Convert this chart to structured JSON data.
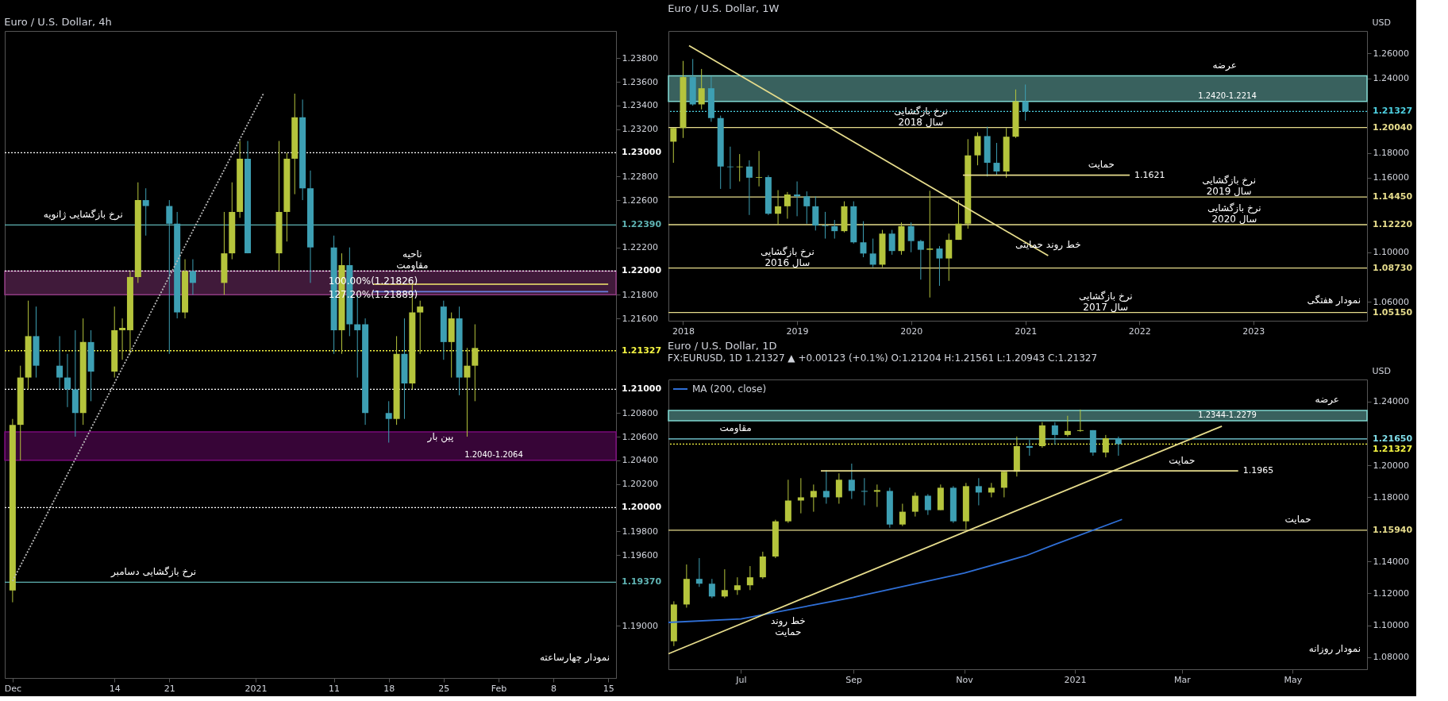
{
  "chart_data": [
    {
      "type": "candlestick",
      "title": "Euro / U.S. Dollar, 4h",
      "colors": [
        "#b5c43c",
        "#b5c43c",
        "#b5c43c",
        "#3d9fb3",
        "#3d9fb3",
        "#3d9fb3",
        "#3d9fb3",
        "#b5c43c",
        "#3d9fb3",
        "#b5c43c",
        "#b5c43c",
        "#b5c43c",
        "#b5c43c",
        "#3d9fb3",
        "#3d9fb3",
        "#3d9fb3",
        "#b5c43c",
        "#3d9fb3",
        "#b5c43c",
        "#b5c43c",
        "#b5c43c",
        "#3d9fb3",
        "#b5c43c",
        "#b5c43c",
        "#b5c43c",
        "#3d9fb3",
        "#3d9fb3",
        "#3d9fb3",
        "#b5c43c",
        "#3d9fb3",
        "#3d9fb3",
        "#3d9fb3",
        "#3d9fb3",
        "#b5c43c",
        "#3d9fb3",
        "#b5c43c",
        "#b5c43c",
        "#3d9fb3",
        "#b5c43c",
        "#3d9fb3",
        "#b5c43c",
        "#b5c43c"
      ],
      "grid": false,
      "x": [
        "2020-12-01",
        "2020-12-02",
        "2020-12-03",
        "2020-12-04",
        "2020-12-07",
        "2020-12-08",
        "2020-12-09",
        "2020-12-10",
        "2020-12-11",
        "2020-12-14",
        "2020-12-15",
        "2020-12-16",
        "2020-12-17",
        "2020-12-18",
        "2020-12-21",
        "2020-12-22",
        "2020-12-23",
        "2020-12-24",
        "2020-12-28",
        "2020-12-29",
        "2020-12-30",
        "2020-12-31",
        "2021-01-04",
        "2021-01-05",
        "2021-01-06",
        "2021-01-07",
        "2021-01-08",
        "2021-01-11",
        "2021-01-12",
        "2021-01-13",
        "2021-01-14",
        "2021-01-15",
        "2021-01-18",
        "2021-01-19",
        "2021-01-20",
        "2021-01-21",
        "2021-01-22",
        "2021-01-25",
        "2021-01-26",
        "2021-01-27",
        "2021-01-28",
        "2021-01-29"
      ],
      "ohlc": [
        [
          1.193,
          1.2075,
          1.192,
          1.207
        ],
        [
          1.207,
          1.212,
          1.204,
          1.211
        ],
        [
          1.211,
          1.2175,
          1.21,
          1.2145
        ],
        [
          1.2145,
          1.217,
          1.211,
          1.212
        ],
        [
          1.212,
          1.2145,
          1.21,
          1.211
        ],
        [
          1.211,
          1.213,
          1.2085,
          1.21
        ],
        [
          1.21,
          1.215,
          1.206,
          1.208
        ],
        [
          1.208,
          1.216,
          1.207,
          1.214
        ],
        [
          1.214,
          1.215,
          1.209,
          1.2115
        ],
        [
          1.2115,
          1.217,
          1.211,
          1.215
        ],
        [
          1.215,
          1.216,
          1.2125,
          1.2152
        ],
        [
          1.215,
          1.22,
          1.213,
          1.2195
        ],
        [
          1.2195,
          1.2275,
          1.219,
          1.226
        ],
        [
          1.226,
          1.227,
          1.223,
          1.2255
        ],
        [
          1.2255,
          1.226,
          1.213,
          1.224
        ],
        [
          1.224,
          1.225,
          1.216,
          1.2165
        ],
        [
          1.2165,
          1.221,
          1.216,
          1.22
        ],
        [
          1.22,
          1.221,
          1.218,
          1.219
        ],
        [
          1.219,
          1.225,
          1.218,
          1.2215
        ],
        [
          1.2215,
          1.2275,
          1.221,
          1.225
        ],
        [
          1.225,
          1.231,
          1.2245,
          1.2295
        ],
        [
          1.2295,
          1.231,
          1.2215,
          1.2215
        ],
        [
          1.2215,
          1.231,
          1.22,
          1.225
        ],
        [
          1.225,
          1.23,
          1.2225,
          1.2295
        ],
        [
          1.2295,
          1.235,
          1.2265,
          1.233
        ],
        [
          1.233,
          1.2345,
          1.226,
          1.227
        ],
        [
          1.227,
          1.2285,
          1.219,
          1.222
        ],
        [
          1.222,
          1.223,
          1.213,
          1.215
        ],
        [
          1.215,
          1.2215,
          1.213,
          1.2205
        ],
        [
          1.2205,
          1.222,
          1.2145,
          1.2155
        ],
        [
          1.2155,
          1.218,
          1.211,
          1.215
        ],
        [
          1.2155,
          1.216,
          1.207,
          1.208
        ],
        [
          1.208,
          1.209,
          1.2055,
          1.2075
        ],
        [
          1.2075,
          1.2145,
          1.207,
          1.213
        ],
        [
          1.213,
          1.216,
          1.2075,
          1.2105
        ],
        [
          1.2105,
          1.219,
          1.21,
          1.2165
        ],
        [
          1.2165,
          1.2175,
          1.213,
          1.217
        ],
        [
          1.217,
          1.2175,
          1.2125,
          1.214
        ],
        [
          1.214,
          1.2165,
          1.211,
          1.216
        ],
        [
          1.216,
          1.217,
          1.2095,
          1.211
        ],
        [
          1.211,
          1.2135,
          1.206,
          1.212
        ],
        [
          1.212,
          1.2155,
          1.209,
          1.2135
        ]
      ],
      "xlim": [
        "2020-11-30",
        "2021-02-16"
      ],
      "xticks": [
        {
          "value": "2020-12-01",
          "label": "Dec"
        },
        {
          "value": "2020-12-14",
          "label": "14"
        },
        {
          "value": "2020-12-21",
          "label": "21"
        },
        {
          "value": "2021-01-01",
          "label": "2021"
        },
        {
          "value": "2021-01-11",
          "label": "11"
        },
        {
          "value": "2021-01-18",
          "label": "18"
        },
        {
          "value": "2021-01-25",
          "label": "25"
        },
        {
          "value": "2021-02-01",
          "label": "Feb"
        },
        {
          "value": "2021-02-08",
          "label": "8"
        },
        {
          "value": "2021-02-15",
          "label": "15"
        }
      ],
      "ylim": [
        1.1856,
        1.2403
      ],
      "yticks": [
        {
          "value": 1.238,
          "label": "1.23800"
        },
        {
          "value": 1.236,
          "label": "1.23600"
        },
        {
          "value": 1.234,
          "label": "1.23400"
        },
        {
          "value": 1.232,
          "label": "1.23200"
        },
        {
          "value": 1.228,
          "label": "1.22800"
        },
        {
          "value": 1.226,
          "label": "1.22600"
        },
        {
          "value": 1.222,
          "label": "1.22200"
        },
        {
          "value": 1.218,
          "label": "1.21800"
        },
        {
          "value": 1.216,
          "label": "1.21600"
        },
        {
          "value": 1.208,
          "label": "1.20800"
        },
        {
          "value": 1.206,
          "label": "1.20600"
        },
        {
          "value": 1.204,
          "label": "1.20400"
        },
        {
          "value": 1.202,
          "label": "1.20200"
        },
        {
          "value": 1.198,
          "label": "1.19800"
        },
        {
          "value": 1.196,
          "label": "1.19600"
        },
        {
          "value": 1.19,
          "label": "1.19000"
        }
      ],
      "ref_lines": [
        {
          "axis": "y",
          "value": 1.23,
          "label": "1.23000",
          "color": "#ffffff",
          "line_style": "dotted"
        },
        {
          "axis": "y",
          "value": 1.2239,
          "label": "1.22390",
          "color": "#5fb3b3",
          "line_style": "solid"
        },
        {
          "axis": "y",
          "value": 1.22,
          "label": "1.22000",
          "color": "#ffffff",
          "line_style": "dotted"
        },
        {
          "axis": "y",
          "value": 1.21327,
          "label": "1.21327",
          "color": "#f5f542",
          "line_style": "dotted"
        },
        {
          "axis": "y",
          "value": 1.21,
          "label": "1.21000",
          "color": "#ffffff",
          "line_style": "dotted"
        },
        {
          "axis": "y",
          "value": 1.2,
          "label": "1.20000",
          "color": "#ffffff",
          "line_style": "dotted"
        },
        {
          "axis": "y",
          "value": 1.1937,
          "label": "1.19370",
          "color": "#5fb3b3",
          "line_style": "solid"
        }
      ],
      "bands": [
        {
          "axis": "y",
          "from": 1.204,
          "to": 1.2064,
          "label": "1.2040-1.2064",
          "color": "#7a0a7a"
        },
        {
          "axis": "y",
          "from": 1.218,
          "to": 1.22,
          "color": "#8e3a80"
        }
      ],
      "series": [
        {
          "type": "line",
          "color": "#bbbbbb",
          "line_style": "dotted",
          "x": [
            "2020-12-01",
            "2021-01-02"
          ],
          "values": [
            1.1938,
            1.235
          ]
        },
        {
          "type": "line",
          "color": "#c8b560",
          "line_style": "solid",
          "x": [
            "2021-01-16",
            "2021-02-15"
          ],
          "values": [
            1.21889,
            1.21889
          ]
        },
        {
          "type": "line",
          "color": "#6a7fe0",
          "line_style": "solid",
          "x": [
            "2021-01-16",
            "2021-02-15"
          ],
          "values": [
            1.21826,
            1.21826
          ]
        }
      ],
      "annotations": [
        "نمودار چهارساعته",
        {
          "text": "نرخ بازگشایی ژانویه",
          "x": "2020-12-10",
          "y": 1.2239
        },
        {
          "text": "ناحیه\nمقاومت",
          "x": "2021-01-21",
          "y": 1.22
        },
        {
          "text": "127.20%(1.21889)",
          "x": "2021-01-16",
          "y": 1.21889
        },
        {
          "text": "100.00%(1.21826)",
          "x": "2021-01-16",
          "y": 1.21826
        },
        {
          "text": "پین بار",
          "x": "2021-01-28",
          "y": 1.206
        },
        {
          "text": "نرخ بازگشایی دسامبر",
          "x": "2020-12-19",
          "y": 1.1937
        }
      ]
    },
    {
      "type": "candlestick",
      "title": "Euro / U.S. Dollar, 1W",
      "ylabel": "USD",
      "colors": [
        "#b5c43c",
        "#b5c43c",
        "#3d9fb3",
        "#b5c43c",
        "#3d9fb3",
        "#3d9fb3",
        "#3d9fb3",
        "#b5c43c",
        "#3d9fb3",
        "#b5c43c",
        "#3d9fb3",
        "#b5c43c",
        "#b5c43c",
        "#3d9fb3",
        "#3d9fb3",
        "#3d9fb3",
        "#3d9fb3",
        "#3d9fb3",
        "#b5c43c",
        "#3d9fb3",
        "#3d9fb3",
        "#3d9fb3",
        "#b5c43c",
        "#3d9fb3",
        "#b5c43c",
        "#3d9fb3",
        "#3d9fb3",
        "#b5c43c",
        "#3d9fb3",
        "#b5c43c",
        "#b5c43c",
        "#b5c43c",
        "#b5c43c",
        "#3d9fb3",
        "#3d9fb3",
        "#b5c43c",
        "#b5c43c",
        "#3d9fb3"
      ],
      "grid": false,
      "x": [
        "2017-12",
        "2018-01",
        "2018-02",
        "2018-03",
        "2018-04",
        "2018-05",
        "2018-06",
        "2018-07",
        "2018-08",
        "2018-09",
        "2018-10",
        "2018-11",
        "2018-12",
        "2019-01",
        "2019-02",
        "2019-03",
        "2019-04",
        "2019-05",
        "2019-06",
        "2019-07",
        "2019-08",
        "2019-09",
        "2019-10",
        "2019-11",
        "2019-12",
        "2020-01",
        "2020-02",
        "2020-03",
        "2020-04",
        "2020-05",
        "2020-06",
        "2020-07",
        "2020-08",
        "2020-09",
        "2020-10",
        "2020-11",
        "2020-12",
        "2021-01"
      ],
      "ohlc": [
        [
          1.189,
          1.2,
          1.172,
          1.2
        ],
        [
          1.2,
          1.254,
          1.192,
          1.241
        ],
        [
          1.241,
          1.2555,
          1.218,
          1.219
        ],
        [
          1.219,
          1.2475,
          1.215,
          1.232
        ],
        [
          1.232,
          1.2415,
          1.205,
          1.208
        ],
        [
          1.208,
          1.21,
          1.151,
          1.169
        ],
        [
          1.169,
          1.185,
          1.151,
          1.1685
        ],
        [
          1.1685,
          1.179,
          1.157,
          1.169
        ],
        [
          1.169,
          1.174,
          1.13,
          1.16
        ],
        [
          1.16,
          1.1815,
          1.153,
          1.1605
        ],
        [
          1.1605,
          1.162,
          1.13,
          1.131
        ],
        [
          1.131,
          1.15,
          1.122,
          1.137
        ],
        [
          1.137,
          1.1485,
          1.127,
          1.1465
        ],
        [
          1.1465,
          1.157,
          1.129,
          1.145
        ],
        [
          1.145,
          1.149,
          1.123,
          1.137
        ],
        [
          1.137,
          1.145,
          1.1175,
          1.1215
        ],
        [
          1.1215,
          1.1325,
          1.111,
          1.121
        ],
        [
          1.121,
          1.126,
          1.111,
          1.117
        ],
        [
          1.117,
          1.141,
          1.116,
          1.137
        ],
        [
          1.137,
          1.141,
          1.107,
          1.108
        ],
        [
          1.108,
          1.125,
          1.096,
          1.099
        ],
        [
          1.099,
          1.111,
          1.088,
          1.09
        ],
        [
          1.09,
          1.118,
          1.088,
          1.115
        ],
        [
          1.115,
          1.118,
          1.098,
          1.101
        ],
        [
          1.101,
          1.124,
          1.098,
          1.121
        ],
        [
          1.121,
          1.124,
          1.1,
          1.109
        ],
        [
          1.109,
          1.11,
          1.078,
          1.102
        ],
        [
          1.102,
          1.1495,
          1.0636,
          1.103
        ],
        [
          1.103,
          1.105,
          1.073,
          1.095
        ],
        [
          1.095,
          1.115,
          1.077,
          1.11
        ],
        [
          1.11,
          1.142,
          1.11,
          1.123
        ],
        [
          1.123,
          1.191,
          1.119,
          1.178
        ],
        [
          1.178,
          1.1965,
          1.17,
          1.1935
        ],
        [
          1.1935,
          1.201,
          1.161,
          1.172
        ],
        [
          1.172,
          1.188,
          1.162,
          1.165
        ],
        [
          1.165,
          1.2,
          1.16,
          1.193
        ],
        [
          1.193,
          1.231,
          1.192,
          1.2215
        ],
        [
          1.2215,
          1.235,
          1.206,
          1.2133
        ]
      ],
      "xlim": [
        "2017-11-15",
        "2023-12-31"
      ],
      "xticks": [
        {
          "value": "2018",
          "label": "2018"
        },
        {
          "value": "2019",
          "label": "2019"
        },
        {
          "value": "2020",
          "label": "2020"
        },
        {
          "value": "2021",
          "label": "2021"
        },
        {
          "value": "2022",
          "label": "2022"
        },
        {
          "value": "2023",
          "label": "2023"
        }
      ],
      "ylim": [
        1.0449,
        1.2781
      ],
      "yticks": [
        {
          "value": 1.26,
          "label": "1.26000"
        },
        {
          "value": 1.24,
          "label": "1.24000"
        },
        {
          "value": 1.18,
          "label": "1.18000"
        },
        {
          "value": 1.16,
          "label": "1.16000"
        },
        {
          "value": 1.1,
          "label": "1.10000"
        },
        {
          "value": 1.06,
          "label": "1.06000"
        }
      ],
      "ref_lines": [
        {
          "axis": "y",
          "value": 1.21327,
          "label": "1.21327",
          "color": "#4dd0e1",
          "line_style": "dotted"
        },
        {
          "axis": "y",
          "value": 1.2004,
          "label": "1.20040",
          "color": "#e6dc8c",
          "line_style": "solid"
        },
        {
          "axis": "y",
          "value": 1.1445,
          "label": "1.14450",
          "color": "#e6dc8c",
          "line_style": "solid"
        },
        {
          "axis": "y",
          "value": 1.1222,
          "label": "1.12220",
          "color": "#e6dc8c",
          "line_style": "solid"
        },
        {
          "axis": "y",
          "value": 1.0873,
          "label": "1.08730",
          "color": "#e6dc8c",
          "line_style": "solid"
        },
        {
          "axis": "y",
          "value": 1.0515,
          "label": "1.05150",
          "color": "#e6dc8c",
          "line_style": "solid"
        }
      ],
      "bands": [
        {
          "axis": "y",
          "from": 1.2214,
          "to": 1.242,
          "label": "1.2420-1.2214",
          "color": "#7fd6d0"
        }
      ],
      "series": [
        {
          "type": "line",
          "color": "#e6dc8c",
          "line_style": "solid",
          "x": [
            "2018-01-20",
            "2021-03-15"
          ],
          "values": [
            1.2663,
            1.0973
          ]
        },
        {
          "type": "line",
          "color": "#e6dc8c",
          "line_style": "solid",
          "x": [
            "2020-06-15",
            "2021-12-01"
          ],
          "values": [
            1.1621,
            1.1621
          ],
          "value_labels": [
            null,
            "1.1621"
          ]
        }
      ],
      "annotations": [
        "نمودار هفتگی",
        {
          "text": "عرضه",
          "x": "2022-10-01",
          "y": 1.242
        },
        {
          "text": "نرخ بازگشایی\nسال 2018",
          "x": "2020-02-01",
          "y": 1.2004
        },
        {
          "text": "حمایت",
          "x": "2021-09-01",
          "y": 1.1621
        },
        {
          "text": "نرخ بازگشایی\nسال 2019",
          "x": "2022-10-15",
          "y": 1.1445
        },
        {
          "text": "نرخ بازگشایی\nسال 2016",
          "x": "2018-12-01",
          "y": 1.0873
        },
        {
          "text": "خط روند حمایتی",
          "x": "2021-03-15",
          "y": 1.0973
        },
        {
          "text": "نرخ بازگشایی\nسال 2020",
          "x": "2022-11-01",
          "y": 1.1222
        },
        {
          "text": "نرخ بازگشایی\nسال 2017",
          "x": "2021-09-15",
          "y": 1.0515
        }
      ]
    },
    {
      "type": "candlestick",
      "title": "Euro / U.S. Dollar, 1D",
      "subtitle": "FX:EURUSD, 1D  1.21327 ▲ +0.00123 (+0.1%) O:1.21204 H:1.21561 L:1.20943 C:1.21327",
      "ylabel": "USD",
      "colors": [
        "#b5c43c",
        "#b5c43c",
        "#3d9fb3",
        "#3d9fb3",
        "#b5c43c",
        "#b5c43c",
        "#b5c43c",
        "#b5c43c",
        "#b5c43c",
        "#b5c43c",
        "#b5c43c",
        "#b5c43c",
        "#3d9fb3",
        "#b5c43c",
        "#3d9fb3",
        "#3d9fb3",
        "#b5c43c",
        "#3d9fb3",
        "#b5c43c",
        "#b5c43c",
        "#3d9fb3",
        "#b5c43c",
        "#3d9fb3",
        "#b5c43c",
        "#3d9fb3",
        "#b5c43c",
        "#b5c43c",
        "#b5c43c",
        "#3d9fb3",
        "#b5c43c",
        "#3d9fb3",
        "#b5c43c",
        "#b5c43c",
        "#3d9fb3",
        "#b5c43c",
        "#3d9fb3"
      ],
      "grid": false,
      "legend": "top left",
      "x": [
        "2020-05-25",
        "2020-06-01",
        "2020-06-08",
        "2020-06-15",
        "2020-06-22",
        "2020-06-29",
        "2020-07-06",
        "2020-07-13",
        "2020-07-20",
        "2020-07-27",
        "2020-08-03",
        "2020-08-10",
        "2020-08-17",
        "2020-08-24",
        "2020-08-31",
        "2020-09-07",
        "2020-09-14",
        "2020-09-21",
        "2020-09-28",
        "2020-10-05",
        "2020-10-12",
        "2020-10-19",
        "2020-10-26",
        "2020-11-02",
        "2020-11-09",
        "2020-11-16",
        "2020-11-23",
        "2020-11-30",
        "2020-12-07",
        "2020-12-14",
        "2020-12-21",
        "2020-12-28",
        "2021-01-04",
        "2021-01-11",
        "2021-01-18",
        "2021-01-25"
      ],
      "ohlc": [
        [
          1.09,
          1.115,
          1.087,
          1.113
        ],
        [
          1.113,
          1.138,
          1.111,
          1.129
        ],
        [
          1.129,
          1.142,
          1.124,
          1.126
        ],
        [
          1.126,
          1.129,
          1.117,
          1.118
        ],
        [
          1.118,
          1.135,
          1.117,
          1.122
        ],
        [
          1.122,
          1.13,
          1.119,
          1.125
        ],
        [
          1.125,
          1.137,
          1.122,
          1.13
        ],
        [
          1.13,
          1.146,
          1.129,
          1.143
        ],
        [
          1.143,
          1.166,
          1.142,
          1.165
        ],
        [
          1.165,
          1.191,
          1.164,
          1.178
        ],
        [
          1.178,
          1.192,
          1.17,
          1.18
        ],
        [
          1.18,
          1.188,
          1.171,
          1.184
        ],
        [
          1.184,
          1.197,
          1.176,
          1.18
        ],
        [
          1.18,
          1.195,
          1.176,
          1.191
        ],
        [
          1.191,
          1.2011,
          1.179,
          1.184
        ],
        [
          1.184,
          1.192,
          1.175,
          1.1835
        ],
        [
          1.1835,
          1.188,
          1.174,
          1.1845
        ],
        [
          1.184,
          1.186,
          1.161,
          1.163
        ],
        [
          1.163,
          1.176,
          1.162,
          1.171
        ],
        [
          1.171,
          1.183,
          1.168,
          1.181
        ],
        [
          1.181,
          1.182,
          1.169,
          1.172
        ],
        [
          1.172,
          1.188,
          1.172,
          1.186
        ],
        [
          1.186,
          1.187,
          1.164,
          1.165
        ],
        [
          1.165,
          1.189,
          1.16,
          1.187
        ],
        [
          1.187,
          1.192,
          1.175,
          1.183
        ],
        [
          1.183,
          1.189,
          1.18,
          1.186
        ],
        [
          1.186,
          1.196,
          1.18,
          1.196
        ],
        [
          1.196,
          1.218,
          1.193,
          1.212
        ],
        [
          1.212,
          1.216,
          1.206,
          1.211
        ],
        [
          1.212,
          1.227,
          1.211,
          1.225
        ],
        [
          1.225,
          1.227,
          1.213,
          1.219
        ],
        [
          1.219,
          1.231,
          1.218,
          1.2215
        ],
        [
          1.2215,
          1.2349,
          1.221,
          1.222
        ],
        [
          1.222,
          1.222,
          1.206,
          1.208
        ],
        [
          1.208,
          1.219,
          1.205,
          1.217
        ],
        [
          1.217,
          1.218,
          1.206,
          1.2133
        ]
      ],
      "xlim": [
        "2020-05-22",
        "2021-06-11"
      ],
      "xticks": [
        {
          "value": "2020-07-01",
          "label": "Jul"
        },
        {
          "value": "2020-09-01",
          "label": "Sep"
        },
        {
          "value": "2020-11-01",
          "label": "Nov"
        },
        {
          "value": "2021-01-01",
          "label": "2021"
        },
        {
          "value": "2021-03-01",
          "label": "Mar"
        },
        {
          "value": "2021-05-01",
          "label": "May"
        }
      ],
      "ylim": [
        1.0725,
        1.2537
      ],
      "yticks": [
        {
          "value": 1.24,
          "label": "1.24000"
        },
        {
          "value": 1.2,
          "label": "1.20000"
        },
        {
          "value": 1.18,
          "label": "1.18000"
        },
        {
          "value": 1.14,
          "label": "1.14000"
        },
        {
          "value": 1.12,
          "label": "1.12000"
        },
        {
          "value": 1.1,
          "label": "1.10000"
        },
        {
          "value": 1.08,
          "label": "1.08000"
        }
      ],
      "ref_lines": [
        {
          "axis": "y",
          "value": 1.2165,
          "label": "1.21650",
          "color": "#80deea",
          "line_style": "solid"
        },
        {
          "axis": "y",
          "value": 1.21327,
          "label": "1.21327",
          "color": "#f5f542",
          "line_style": "dotted"
        },
        {
          "axis": "y",
          "value": 1.1594,
          "label": "1.15940",
          "color": "#e6dc8c",
          "line_style": "solid"
        }
      ],
      "bands": [
        {
          "axis": "y",
          "from": 1.2279,
          "to": 1.2344,
          "label": "1.2344-1.2279",
          "color": "#7fd6d0"
        }
      ],
      "series": [
        {
          "type": "line",
          "name": "MA (200, close)",
          "color": "#2f6fd6",
          "line_style": "solid",
          "x": [
            "2020-05-22",
            "2020-07-01",
            "2020-09-01",
            "2020-11-01",
            "2020-12-05",
            "2020-12-20",
            "2021-01-27"
          ],
          "values": [
            1.1018,
            1.104,
            1.1175,
            1.1326,
            1.1435,
            1.1501,
            1.1662
          ]
        },
        {
          "type": "line",
          "color": "#e6dc8c",
          "line_style": "solid",
          "x": [
            "2020-05-22",
            "2021-03-23"
          ],
          "values": [
            1.0822,
            1.2245
          ]
        },
        {
          "type": "line",
          "color": "#e6dc8c",
          "line_style": "solid",
          "x": [
            "2020-08-14",
            "2021-04-01"
          ],
          "values": [
            1.1965,
            1.1965
          ],
          "value_labels": [
            null,
            "1.1965"
          ]
        }
      ],
      "annotations": [
        "نمودار روزانه",
        {
          "text": "عرضه",
          "x": "2021-05-20",
          "y": 1.2344
        },
        {
          "text": "مقاومت",
          "x": "2020-06-28",
          "y": 1.2165
        },
        {
          "text": "حمایت",
          "x": "2021-03-01",
          "y": 1.1965
        },
        {
          "text": "حمایت",
          "x": "2021-05-04",
          "y": 1.1594
        },
        {
          "text": "خط روند\nحمایت",
          "x": "2020-07-27",
          "y": 1.113
        }
      ]
    }
  ]
}
